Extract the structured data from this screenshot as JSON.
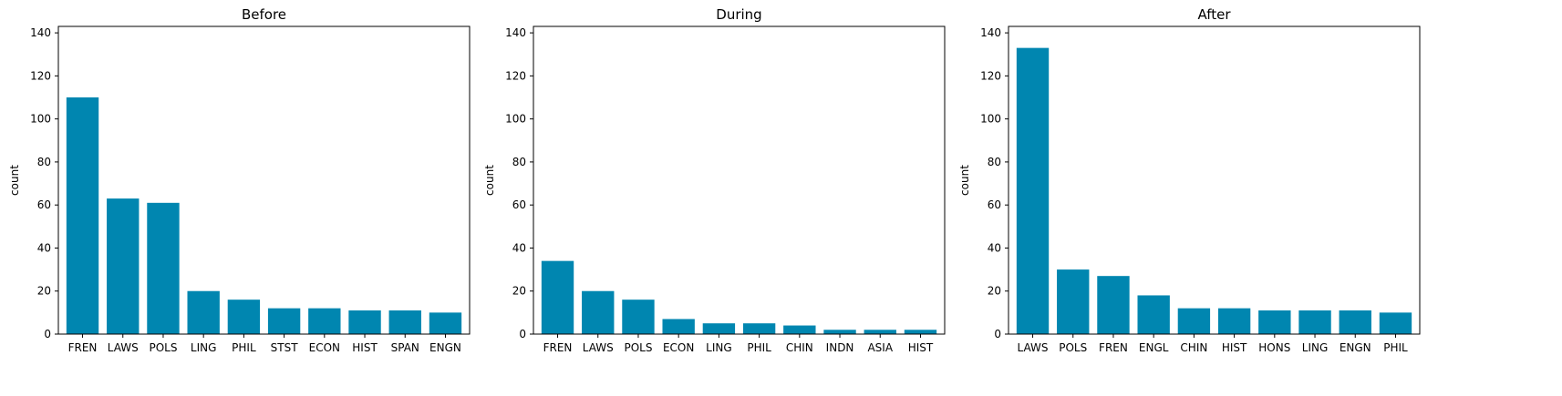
{
  "colors": {
    "bar": "#0086b0",
    "axis": "#000000",
    "background": "#ffffff"
  },
  "chart_data": [
    {
      "type": "bar",
      "title": "Before",
      "xlabel": "",
      "ylabel": "count",
      "ylim": [
        0,
        143
      ],
      "yticks": [
        0,
        20,
        40,
        60,
        80,
        100,
        120,
        140
      ],
      "categories": [
        "FREN",
        "LAWS",
        "POLS",
        "LING",
        "PHIL",
        "STST",
        "ECON",
        "HIST",
        "SPAN",
        "ENGN"
      ],
      "values": [
        110,
        63,
        61,
        20,
        16,
        12,
        12,
        11,
        11,
        10
      ],
      "grid": false
    },
    {
      "type": "bar",
      "title": "During",
      "xlabel": "",
      "ylabel": "count",
      "ylim": [
        0,
        143
      ],
      "yticks": [
        0,
        20,
        40,
        60,
        80,
        100,
        120,
        140
      ],
      "categories": [
        "FREN",
        "LAWS",
        "POLS",
        "ECON",
        "LING",
        "PHIL",
        "CHIN",
        "INDN",
        "ASIA",
        "HIST"
      ],
      "values": [
        34,
        20,
        16,
        7,
        5,
        5,
        4,
        2,
        2,
        2
      ],
      "grid": false
    },
    {
      "type": "bar",
      "title": "After",
      "xlabel": "",
      "ylabel": "count",
      "ylim": [
        0,
        143
      ],
      "yticks": [
        0,
        20,
        40,
        60,
        80,
        100,
        120,
        140
      ],
      "categories": [
        "LAWS",
        "POLS",
        "FREN",
        "ENGL",
        "CHIN",
        "HIST",
        "HONS",
        "LING",
        "ENGN",
        "PHIL"
      ],
      "values": [
        133,
        30,
        27,
        18,
        12,
        12,
        11,
        11,
        11,
        10
      ],
      "grid": false
    }
  ]
}
